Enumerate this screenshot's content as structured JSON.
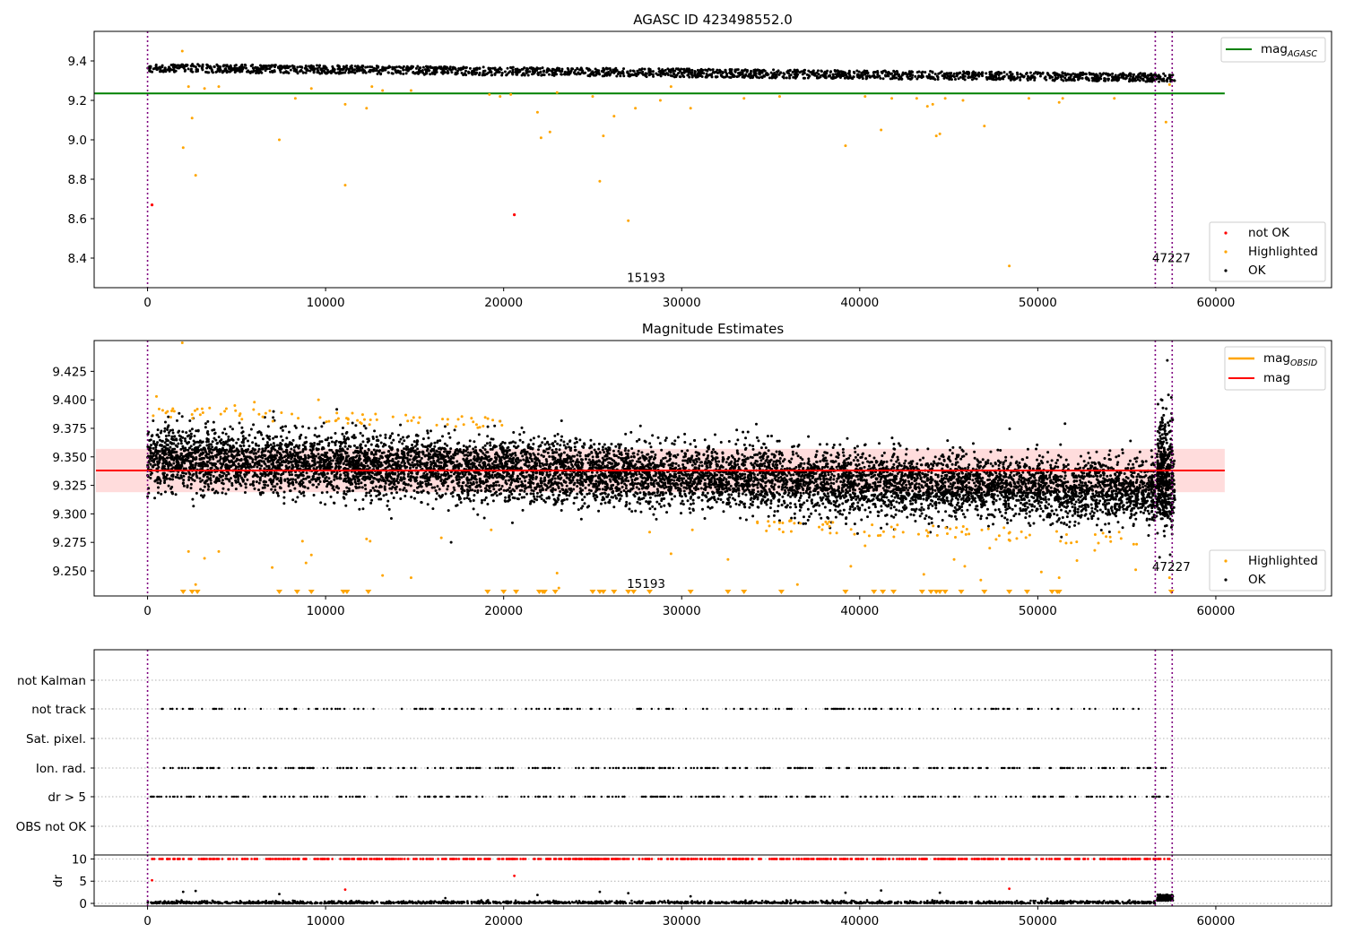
{
  "colors": {
    "ok": "#000000",
    "highlighted": "#ffa500",
    "not_ok": "#ff0000",
    "mag_agasc_line": "#008000",
    "mag_line": "#ff0000",
    "mag_obsid_line": "#ffa500",
    "band_fill": "#ffc0c0",
    "vline": "#800080",
    "grid": "#b0b0b0"
  },
  "chart_data": [
    {
      "type": "scatter",
      "title": "AGASC ID 423498552.0",
      "xlim": [
        -3000,
        66500
      ],
      "ylim": [
        8.25,
        9.55
      ],
      "xticks": [
        0,
        10000,
        20000,
        30000,
        40000,
        50000,
        60000
      ],
      "yticks": [
        8.4,
        8.6,
        8.8,
        9.0,
        9.2,
        9.4
      ],
      "vlines": [
        0,
        56600,
        57550
      ],
      "annotations": [
        {
          "text": "15193",
          "x": 28000,
          "y": 8.28
        },
        {
          "text": "47227",
          "x": 57500,
          "y": 8.38
        }
      ],
      "hline": {
        "name": "mag",
        "sub": "AGASC",
        "y": 9.235,
        "x_range": [
          0,
          60500
        ]
      },
      "ok_band": {
        "x_range": [
          0,
          57700
        ],
        "y_start": 9.365,
        "y_end": 9.315,
        "spread": 0.03,
        "count": 2000
      },
      "legend": [
        "not OK",
        "Highlighted",
        "OK"
      ],
      "highlighted": [
        [
          1950,
          9.45
        ],
        [
          2000,
          8.96
        ],
        [
          2300,
          9.27
        ],
        [
          2500,
          9.11
        ],
        [
          2700,
          8.82
        ],
        [
          3200,
          9.26
        ],
        [
          4000,
          9.27
        ],
        [
          7400,
          9.0
        ],
        [
          8300,
          9.21
        ],
        [
          9200,
          9.26
        ],
        [
          11100,
          9.18
        ],
        [
          11100,
          8.77
        ],
        [
          12300,
          9.16
        ],
        [
          12600,
          9.27
        ],
        [
          13200,
          9.25
        ],
        [
          14800,
          9.25
        ],
        [
          19200,
          9.23
        ],
        [
          19800,
          9.22
        ],
        [
          20400,
          9.23
        ],
        [
          21900,
          9.14
        ],
        [
          22100,
          9.01
        ],
        [
          22600,
          9.04
        ],
        [
          23000,
          9.24
        ],
        [
          25000,
          9.22
        ],
        [
          25400,
          8.79
        ],
        [
          25600,
          9.02
        ],
        [
          26200,
          9.12
        ],
        [
          27000,
          8.59
        ],
        [
          27400,
          9.16
        ],
        [
          28800,
          9.2
        ],
        [
          29400,
          9.27
        ],
        [
          30500,
          9.16
        ],
        [
          33500,
          9.21
        ],
        [
          35500,
          9.22
        ],
        [
          39200,
          8.97
        ],
        [
          40300,
          9.22
        ],
        [
          41200,
          9.05
        ],
        [
          41800,
          9.21
        ],
        [
          43200,
          9.21
        ],
        [
          43800,
          9.17
        ],
        [
          44100,
          9.18
        ],
        [
          44300,
          9.02
        ],
        [
          44500,
          9.03
        ],
        [
          44800,
          9.21
        ],
        [
          45800,
          9.2
        ],
        [
          47000,
          9.07
        ],
        [
          48400,
          8.36
        ],
        [
          49500,
          9.21
        ],
        [
          51200,
          9.19
        ],
        [
          51400,
          9.21
        ],
        [
          54300,
          9.21
        ],
        [
          57200,
          9.09
        ],
        [
          57400,
          9.28
        ]
      ],
      "not_ok": [
        [
          250,
          8.67
        ],
        [
          20600,
          8.62
        ]
      ]
    },
    {
      "type": "scatter",
      "title": "Magnitude Estimates",
      "xlim": [
        -3000,
        66500
      ],
      "ylim": [
        9.228,
        9.452
      ],
      "xticks": [
        0,
        10000,
        20000,
        30000,
        40000,
        50000,
        60000
      ],
      "yticks": [
        9.25,
        9.275,
        9.3,
        9.325,
        9.35,
        9.375,
        9.4,
        9.425
      ],
      "vlines": [
        0,
        56600,
        57550
      ],
      "annotations": [
        {
          "text": "15193",
          "x": 28000,
          "y": 9.235
        },
        {
          "text": "47227",
          "x": 57500,
          "y": 9.25
        }
      ],
      "mag": 9.338,
      "mag_band": [
        9.319,
        9.357
      ],
      "mag_x_range": [
        -2900,
        60500
      ],
      "ok_trend": {
        "x_range": [
          0,
          57700
        ],
        "y_start": 9.349,
        "y_end": 9.318,
        "spread": 0.018,
        "outer_spread": 0.045,
        "count": 9000
      },
      "legend": [
        {
          "label": "mag",
          "sub": "OBSID"
        },
        {
          "label": "mag",
          "sub": ""
        },
        {
          "label": "Highlighted",
          "sub": ""
        },
        {
          "label": "OK",
          "sub": ""
        }
      ],
      "highlighted": [
        [
          1950,
          9.45
        ],
        [
          500,
          9.403
        ],
        [
          1500,
          9.39
        ],
        [
          2300,
          9.267
        ],
        [
          2700,
          9.238
        ],
        [
          3200,
          9.261
        ],
        [
          4000,
          9.267
        ],
        [
          4900,
          9.395
        ],
        [
          6000,
          9.398
        ],
        [
          7000,
          9.253
        ],
        [
          8700,
          9.276
        ],
        [
          8900,
          9.257
        ],
        [
          9200,
          9.264
        ],
        [
          9600,
          9.4
        ],
        [
          12300,
          9.278
        ],
        [
          12500,
          9.276
        ],
        [
          13200,
          9.246
        ],
        [
          14800,
          9.244
        ],
        [
          16500,
          9.279
        ],
        [
          19300,
          9.286
        ],
        [
          23000,
          9.248
        ],
        [
          23100,
          9.235
        ],
        [
          28200,
          9.284
        ],
        [
          29400,
          9.265
        ],
        [
          30600,
          9.286
        ],
        [
          32600,
          9.26
        ],
        [
          36500,
          9.238
        ],
        [
          39500,
          9.254
        ],
        [
          40300,
          9.272
        ],
        [
          43600,
          9.247
        ],
        [
          45300,
          9.26
        ],
        [
          45900,
          9.254
        ],
        [
          46800,
          9.242
        ],
        [
          47300,
          9.27
        ],
        [
          50200,
          9.249
        ],
        [
          51200,
          9.244
        ],
        [
          52200,
          9.259
        ],
        [
          53200,
          9.268
        ],
        [
          55500,
          9.251
        ],
        [
          57400,
          9.244
        ]
      ],
      "lower_markers": [
        2000,
        2500,
        2800,
        7400,
        8400,
        9200,
        11000,
        11200,
        12400,
        19100,
        20000,
        20700,
        22000,
        22200,
        22300,
        22900,
        25000,
        25400,
        25600,
        26200,
        27000,
        27300,
        28200,
        30500,
        32600,
        33500,
        35600,
        39200,
        40800,
        41300,
        41900,
        43500,
        44000,
        44300,
        44500,
        44800,
        45700,
        47000,
        48400,
        49400,
        50800,
        51100,
        51200,
        57500
      ]
    },
    {
      "type": "scatter",
      "title": "",
      "xlim": [
        -3000,
        66500
      ],
      "categories": [
        "not Kalman",
        "not track",
        "Sat. pixel.",
        "Ion. rad.",
        "dr > 5",
        "OBS not OK"
      ],
      "vlines": [
        0,
        56600,
        57550
      ],
      "flag_rows": [
        {
          "label": "not track",
          "x_range": [
            800,
            56600
          ],
          "count": 190
        },
        {
          "label": "Ion. rad.",
          "x_range": [
            100,
            57400
          ],
          "count": 340
        },
        {
          "label": "dr > 5",
          "x_range": [
            100,
            57400
          ],
          "count": 300
        }
      ]
    },
    {
      "type": "scatter",
      "title": "",
      "ylabel": "dr",
      "xlim": [
        -3000,
        66500
      ],
      "ylim": [
        -0.6,
        10.9
      ],
      "xticks": [
        0,
        10000,
        20000,
        30000,
        40000,
        50000,
        60000
      ],
      "yticks": [
        0,
        5,
        10
      ],
      "vlines": [
        0,
        56600,
        57550
      ],
      "red_cap": {
        "y": 10,
        "x_range": [
          100,
          57400
        ],
        "count": 700
      },
      "red_points": [
        [
          250,
          5.2
        ],
        [
          11100,
          3.1
        ],
        [
          20600,
          6.2
        ],
        [
          48400,
          3.3
        ]
      ],
      "scatter_points": [
        [
          2000,
          2.6
        ],
        [
          2700,
          2.8
        ],
        [
          7400,
          2.1
        ],
        [
          21900,
          1.9
        ],
        [
          25400,
          2.6
        ],
        [
          27000,
          2.3
        ],
        [
          30500,
          1.6
        ],
        [
          39200,
          2.4
        ],
        [
          41200,
          2.9
        ],
        [
          44500,
          2.4
        ]
      ]
    }
  ]
}
